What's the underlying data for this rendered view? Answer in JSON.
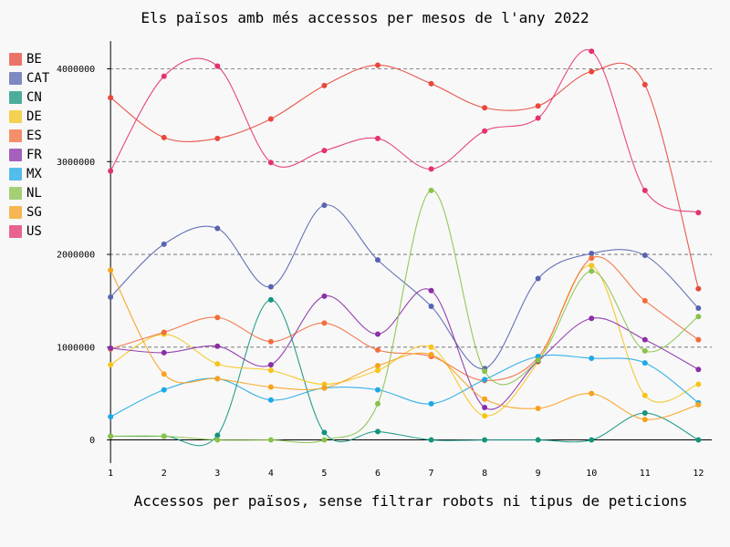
{
  "chart_data": {
    "type": "line",
    "title": "Els països amb més accessos per mesos de l'any 2022",
    "xlabel": "Accessos per països, sense filtrar robots ni tipus de peticions",
    "ylabel": "",
    "ylim": [
      -250000,
      4300000
    ],
    "xlim": [
      0.98,
      12.25
    ],
    "x": [
      1,
      2,
      3,
      4,
      5,
      6,
      7,
      8,
      9,
      10,
      11,
      12
    ],
    "x_tick_labels": [
      "1",
      "2",
      "3",
      "4",
      "5",
      "6",
      "7",
      "8",
      "9",
      "10",
      "11",
      "12"
    ],
    "y_ticks": [
      0,
      1000000,
      2000000,
      3000000,
      4000000
    ],
    "y_tick_labels": [
      "0",
      "1000000",
      "2000000",
      "3000000",
      "4000000"
    ],
    "grid": "horizontal dashed",
    "legend": "left",
    "series": [
      {
        "name": "BE",
        "color": "#e8473a",
        "values": [
          3690000,
          3260000,
          3250000,
          3460000,
          3820000,
          4040000,
          3840000,
          3580000,
          3600000,
          3970000,
          3830000,
          1630000
        ]
      },
      {
        "name": "CAT",
        "color": "#5664b0",
        "values": [
          1540000,
          2110000,
          2280000,
          1650000,
          2530000,
          1940000,
          1440000,
          770000,
          1740000,
          2010000,
          1990000,
          1420000
        ]
      },
      {
        "name": "CN",
        "color": "#13947e",
        "values": [
          40000,
          40000,
          50000,
          1510000,
          80000,
          90000,
          0,
          0,
          0,
          0,
          290000,
          0
        ]
      },
      {
        "name": "DE",
        "color": "#f5c518",
        "values": [
          810000,
          1140000,
          820000,
          750000,
          600000,
          750000,
          1000000,
          260000,
          840000,
          1880000,
          480000,
          600000
        ]
      },
      {
        "name": "ES",
        "color": "#f26d3d",
        "values": [
          980000,
          1160000,
          1320000,
          1060000,
          1260000,
          970000,
          900000,
          640000,
          890000,
          1960000,
          1500000,
          1080000
        ]
      },
      {
        "name": "FR",
        "color": "#8a2ea8",
        "values": [
          990000,
          940000,
          1010000,
          810000,
          1550000,
          1140000,
          1610000,
          350000,
          850000,
          1310000,
          1080000,
          760000
        ]
      },
      {
        "name": "MX",
        "color": "#1ea8e6",
        "values": [
          250000,
          540000,
          660000,
          430000,
          560000,
          540000,
          390000,
          650000,
          900000,
          880000,
          830000,
          400000
        ]
      },
      {
        "name": "NL",
        "color": "#8ac24a",
        "values": [
          40000,
          40000,
          0,
          0,
          0,
          390000,
          2690000,
          740000,
          860000,
          1820000,
          960000,
          1330000
        ]
      },
      {
        "name": "SG",
        "color": "#f7a11c",
        "values": [
          1830000,
          710000,
          660000,
          570000,
          560000,
          800000,
          920000,
          440000,
          340000,
          500000,
          220000,
          380000
        ]
      },
      {
        "name": "US",
        "color": "#e3336b",
        "values": [
          2900000,
          3920000,
          4030000,
          2990000,
          3120000,
          3250000,
          2920000,
          3330000,
          3470000,
          4190000,
          2690000,
          2450000
        ]
      }
    ]
  }
}
